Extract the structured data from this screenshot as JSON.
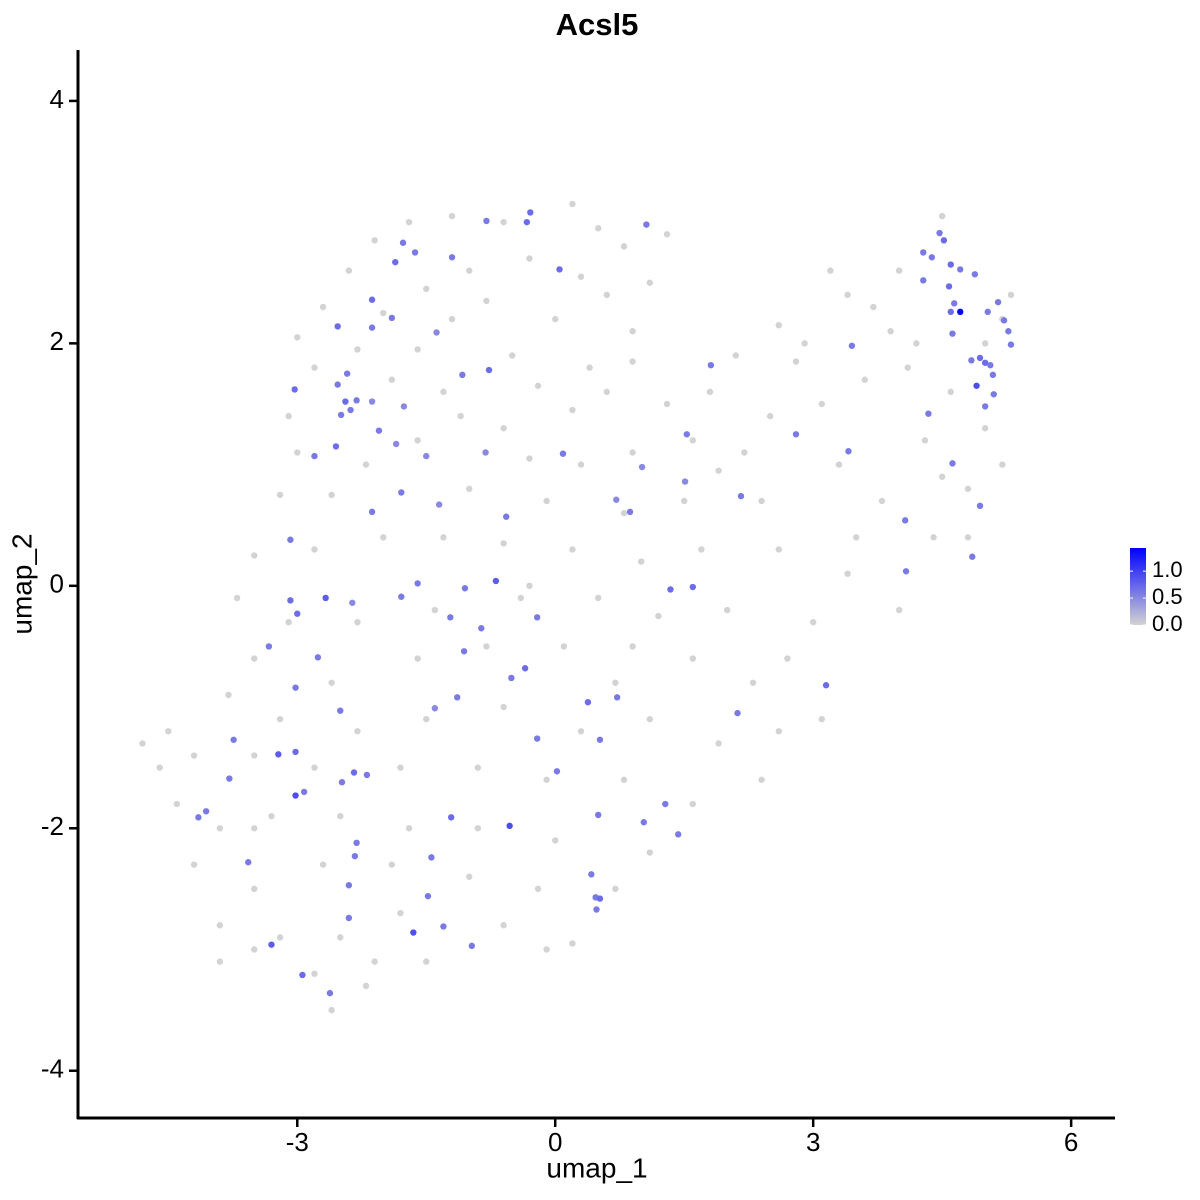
{
  "chart_data": {
    "type": "scatter",
    "title": "Acsl5",
    "x_label": "umap_1",
    "y_label": "umap_2",
    "xlim": [
      -5.55,
      6.51
    ],
    "ylim": [
      -4.39,
      4.42
    ],
    "xticks": [
      -3,
      0,
      3,
      6
    ],
    "yticks": [
      -4,
      -2,
      0,
      2,
      4
    ],
    "colors": [
      "#d3d3d3",
      "#0000ff"
    ],
    "clim": [
      0,
      1.43
    ],
    "cticks": [
      {
        "value": 0,
        "label": "0.0"
      },
      {
        "value": 0.5,
        "label": "0.5"
      },
      {
        "value": 1,
        "label": "1.0"
      }
    ],
    "points": [
      [
        -1.7,
        3.0,
        0
      ],
      [
        -1.2,
        3.05,
        0
      ],
      [
        -0.6,
        3.0,
        0
      ],
      [
        0.2,
        3.15,
        0
      ],
      [
        0.5,
        2.95,
        0
      ],
      [
        -2.1,
        2.85,
        0
      ],
      [
        0.8,
        2.8,
        0
      ],
      [
        1.3,
        2.9,
        0
      ],
      [
        -0.3,
        2.7,
        0
      ],
      [
        -1.0,
        2.6,
        0
      ],
      [
        0.3,
        2.55,
        0
      ],
      [
        -2.4,
        2.6,
        0
      ],
      [
        -1.5,
        2.45,
        0
      ],
      [
        -0.8,
        2.35,
        0
      ],
      [
        0.6,
        2.4,
        0
      ],
      [
        1.1,
        2.5,
        0
      ],
      [
        -2.7,
        2.3,
        0
      ],
      [
        -2.0,
        2.25,
        0
      ],
      [
        -1.2,
        2.2,
        0
      ],
      [
        0.0,
        2.2,
        0
      ],
      [
        0.9,
        2.1,
        0
      ],
      [
        -3.0,
        2.05,
        0
      ],
      [
        -2.3,
        1.95,
        0
      ],
      [
        -1.6,
        1.95,
        0
      ],
      [
        -0.5,
        1.9,
        0
      ],
      [
        0.4,
        1.8,
        0
      ],
      [
        0.9,
        1.85,
        0
      ],
      [
        -2.8,
        1.8,
        0
      ],
      [
        -1.9,
        1.7,
        0
      ],
      [
        -1.3,
        1.6,
        0
      ],
      [
        -0.2,
        1.65,
        0
      ],
      [
        -3.1,
        1.4,
        0
      ],
      [
        -1.1,
        1.4,
        0
      ],
      [
        -0.6,
        1.3,
        0
      ],
      [
        0.2,
        1.45,
        0
      ],
      [
        0.6,
        1.6,
        0
      ],
      [
        1.3,
        1.5,
        0
      ],
      [
        1.8,
        1.6,
        0
      ],
      [
        2.1,
        1.9,
        0
      ],
      [
        2.6,
        2.15,
        0
      ],
      [
        2.8,
        1.85,
        0
      ],
      [
        3.4,
        2.4,
        0
      ],
      [
        3.2,
        2.6,
        0
      ],
      [
        3.7,
        2.3,
        0
      ],
      [
        3.9,
        2.1,
        0
      ],
      [
        4.1,
        1.8,
        0
      ],
      [
        3.6,
        1.7,
        0
      ],
      [
        3.1,
        1.5,
        0
      ],
      [
        2.5,
        1.4,
        0
      ],
      [
        2.2,
        1.1,
        0
      ],
      [
        1.6,
        1.2,
        0
      ],
      [
        0.9,
        1.1,
        0
      ],
      [
        0.3,
        1.0,
        0
      ],
      [
        -0.3,
        1.05,
        0
      ],
      [
        -1.6,
        1.2,
        0
      ],
      [
        -2.2,
        1.0,
        0
      ],
      [
        -3.0,
        1.1,
        0
      ],
      [
        -3.2,
        0.75,
        0
      ],
      [
        -2.6,
        0.75,
        0
      ],
      [
        -1.0,
        0.8,
        0
      ],
      [
        -0.1,
        0.7,
        0
      ],
      [
        0.8,
        0.6,
        0
      ],
      [
        1.5,
        0.7,
        0
      ],
      [
        2.4,
        0.7,
        0
      ],
      [
        3.3,
        1.0,
        0
      ],
      [
        3.8,
        0.7,
        0
      ],
      [
        4.3,
        1.2,
        0
      ],
      [
        4.5,
        0.9,
        0
      ],
      [
        4.8,
        0.8,
        0
      ],
      [
        5.2,
        1.0,
        0
      ],
      [
        5.0,
        1.3,
        0
      ],
      [
        4.6,
        1.6,
        0
      ],
      [
        4.2,
        2.0,
        0
      ],
      [
        3.5,
        0.4,
        0
      ],
      [
        4.4,
        0.4,
        0
      ],
      [
        4.8,
        0.4,
        0
      ],
      [
        3.4,
        0.1,
        0
      ],
      [
        3.0,
        -0.3,
        0
      ],
      [
        4.0,
        -0.2,
        0
      ],
      [
        2.6,
        0.3,
        0
      ],
      [
        1.7,
        0.3,
        0
      ],
      [
        1.0,
        0.2,
        0
      ],
      [
        0.2,
        0.3,
        0
      ],
      [
        -0.6,
        0.35,
        0
      ],
      [
        -1.3,
        0.4,
        0
      ],
      [
        -2.0,
        0.4,
        0
      ],
      [
        -2.8,
        0.3,
        0
      ],
      [
        -3.5,
        0.25,
        0
      ],
      [
        -3.7,
        -0.1,
        0
      ],
      [
        -3.1,
        -0.3,
        0
      ],
      [
        -2.3,
        -0.3,
        0
      ],
      [
        -1.4,
        -0.2,
        0
      ],
      [
        -0.4,
        -0.1,
        0
      ],
      [
        0.5,
        -0.1,
        0
      ],
      [
        1.2,
        -0.25,
        0
      ],
      [
        2.0,
        -0.2,
        0
      ],
      [
        2.7,
        -0.6,
        0
      ],
      [
        2.3,
        -0.8,
        0
      ],
      [
        1.6,
        -0.6,
        0
      ],
      [
        0.9,
        -0.5,
        0
      ],
      [
        0.1,
        -0.5,
        0
      ],
      [
        -0.8,
        -0.5,
        0
      ],
      [
        -1.6,
        -0.6,
        0
      ],
      [
        -2.6,
        -0.8,
        0
      ],
      [
        -3.5,
        -0.6,
        0
      ],
      [
        -3.8,
        -0.9,
        0
      ],
      [
        -3.2,
        -1.1,
        0
      ],
      [
        -2.3,
        -1.2,
        0
      ],
      [
        -1.5,
        -1.1,
        0
      ],
      [
        -0.6,
        -1.0,
        0
      ],
      [
        0.3,
        -1.2,
        0
      ],
      [
        1.1,
        -1.1,
        0
      ],
      [
        1.9,
        -1.3,
        0
      ],
      [
        2.6,
        -1.2,
        0
      ],
      [
        3.1,
        -1.1,
        0
      ],
      [
        2.4,
        -1.6,
        0
      ],
      [
        1.6,
        -1.8,
        0
      ],
      [
        0.8,
        -1.6,
        0
      ],
      [
        -0.1,
        -1.6,
        0
      ],
      [
        -0.9,
        -1.5,
        0
      ],
      [
        -1.8,
        -1.5,
        0
      ],
      [
        -2.8,
        -1.5,
        0
      ],
      [
        -3.5,
        -1.4,
        0
      ],
      [
        -4.2,
        -1.4,
        0
      ],
      [
        -4.5,
        -1.2,
        0
      ],
      [
        -4.8,
        -1.3,
        0
      ],
      [
        -4.6,
        -1.5,
        0
      ],
      [
        -4.4,
        -1.8,
        0
      ],
      [
        -3.9,
        -2.0,
        0
      ],
      [
        -3.3,
        -1.9,
        0
      ],
      [
        -2.5,
        -1.9,
        0
      ],
      [
        -1.7,
        -2.0,
        0
      ],
      [
        -0.9,
        -2.0,
        0
      ],
      [
        0.0,
        -2.1,
        0
      ],
      [
        1.1,
        -2.2,
        0
      ],
      [
        0.7,
        -2.5,
        0
      ],
      [
        -0.2,
        -2.5,
        0
      ],
      [
        -1.0,
        -2.4,
        0
      ],
      [
        -1.9,
        -2.3,
        0
      ],
      [
        -2.7,
        -2.3,
        0
      ],
      [
        -3.5,
        -2.5,
        0
      ],
      [
        -4.2,
        -2.3,
        0
      ],
      [
        -3.9,
        -2.8,
        0
      ],
      [
        -3.2,
        -2.9,
        0
      ],
      [
        -2.5,
        -2.9,
        0
      ],
      [
        -1.8,
        -2.7,
        0
      ],
      [
        -0.6,
        -2.8,
        0
      ],
      [
        0.2,
        -2.95,
        0
      ],
      [
        -0.1,
        -3.0,
        0
      ],
      [
        -1.5,
        -3.1,
        0
      ],
      [
        -2.1,
        -3.1,
        0
      ],
      [
        -2.8,
        -3.2,
        0
      ],
      [
        -3.5,
        -3.0,
        0
      ],
      [
        -2.6,
        -3.5,
        0
      ],
      [
        -2.2,
        -3.3,
        0
      ],
      [
        -3.9,
        -3.1,
        0
      ],
      [
        1.9,
        0.95,
        0
      ],
      [
        2.9,
        2.0,
        0
      ],
      [
        4.0,
        2.6,
        0
      ],
      [
        4.5,
        3.05,
        0
      ],
      [
        5.3,
        2.4,
        0
      ],
      [
        5.2,
        2.2,
        0
      ],
      [
        5.0,
        2.0,
        0
      ],
      [
        -3.5,
        -2.0,
        0
      ],
      [
        -0.3,
        0.0,
        0
      ],
      [
        0.7,
        -0.8,
        0
      ],
      [
        -0.29,
        3.08,
        0.7
      ],
      [
        -0.33,
        3.0,
        0.7
      ],
      [
        -0.8,
        3.01,
        0.6
      ],
      [
        1.06,
        2.98,
        0.6
      ],
      [
        0.05,
        2.61,
        0.7
      ],
      [
        -1.77,
        2.83,
        0.6
      ],
      [
        -1.63,
        2.75,
        0.6
      ],
      [
        -1.86,
        2.67,
        0.7
      ],
      [
        -1.2,
        2.71,
        0.6
      ],
      [
        -2.13,
        2.36,
        0.7
      ],
      [
        -2.53,
        2.14,
        0.7
      ],
      [
        -2.13,
        2.13,
        0.6
      ],
      [
        -1.9,
        2.21,
        0.6
      ],
      [
        -1.38,
        2.09,
        0.5
      ],
      [
        -3.03,
        1.62,
        0.7
      ],
      [
        -2.53,
        1.66,
        0.6
      ],
      [
        -2.42,
        1.75,
        0.6
      ],
      [
        -1.08,
        1.74,
        0.6
      ],
      [
        -0.77,
        1.78,
        0.7
      ],
      [
        -2.44,
        1.52,
        0.7
      ],
      [
        -2.31,
        1.53,
        0.6
      ],
      [
        -2.13,
        1.52,
        0.5
      ],
      [
        -2.38,
        1.45,
        0.6
      ],
      [
        -1.76,
        1.48,
        0.5
      ],
      [
        -2.49,
        1.41,
        0.6
      ],
      [
        -2.05,
        1.28,
        0.6
      ],
      [
        -2.55,
        1.15,
        0.7
      ],
      [
        -2.8,
        1.07,
        0.6
      ],
      [
        -1.85,
        1.17,
        0.5
      ],
      [
        -1.5,
        1.07,
        0.5
      ],
      [
        -0.81,
        1.1,
        0.5
      ],
      [
        0.09,
        1.09,
        0.6
      ],
      [
        1.01,
        0.98,
        0.5
      ],
      [
        1.53,
        1.25,
        0.6
      ],
      [
        1.81,
        1.82,
        0.6
      ],
      [
        2.8,
        1.25,
        0.6
      ],
      [
        3.41,
        1.11,
        0.6
      ],
      [
        3.45,
        1.98,
        0.6
      ],
      [
        1.51,
        0.86,
        0.5
      ],
      [
        2.16,
        0.74,
        0.6
      ],
      [
        -1.79,
        0.77,
        0.6
      ],
      [
        -2.13,
        0.61,
        0.6
      ],
      [
        -1.35,
        0.67,
        0.5
      ],
      [
        -0.57,
        0.57,
        0.6
      ],
      [
        0.87,
        0.61,
        0.6
      ],
      [
        0.71,
        0.71,
        0.5
      ],
      [
        -3.08,
        0.38,
        0.6
      ],
      [
        -0.69,
        0.04,
        0.8
      ],
      [
        -3.08,
        -0.12,
        0.7
      ],
      [
        -3.0,
        -0.23,
        0.7
      ],
      [
        -2.67,
        -0.1,
        0.8
      ],
      [
        -2.36,
        -0.14,
        0.5
      ],
      [
        -1.6,
        0.02,
        0.6
      ],
      [
        -1.79,
        -0.09,
        0.6
      ],
      [
        -1.05,
        -0.02,
        0.6
      ],
      [
        1.6,
        -0.01,
        0.7
      ],
      [
        1.34,
        -0.03,
        0.7
      ],
      [
        -0.21,
        -0.26,
        0.6
      ],
      [
        -0.86,
        -0.35,
        0.6
      ],
      [
        -1.22,
        -0.26,
        0.6
      ],
      [
        -1.06,
        -0.54,
        0.6
      ],
      [
        -3.33,
        -0.5,
        0.6
      ],
      [
        -2.76,
        -0.59,
        0.6
      ],
      [
        -3.02,
        -0.84,
        0.6
      ],
      [
        -0.35,
        -0.68,
        0.7
      ],
      [
        -0.51,
        -0.76,
        0.6
      ],
      [
        -1.14,
        -0.92,
        0.6
      ],
      [
        -1.4,
        -1.01,
        0.5
      ],
      [
        -2.5,
        -1.03,
        0.6
      ],
      [
        0.38,
        -0.96,
        0.7
      ],
      [
        0.72,
        -0.92,
        0.6
      ],
      [
        2.12,
        -1.05,
        0.6
      ],
      [
        3.15,
        -0.82,
        0.7
      ],
      [
        -0.21,
        -1.26,
        0.6
      ],
      [
        0.52,
        -1.27,
        0.6
      ],
      [
        -3.74,
        -1.27,
        0.6
      ],
      [
        -3.02,
        -1.37,
        0.7
      ],
      [
        -3.22,
        -1.39,
        0.8
      ],
      [
        0.02,
        -1.53,
        0.6
      ],
      [
        -2.19,
        -1.56,
        0.6
      ],
      [
        -2.34,
        -1.54,
        0.7
      ],
      [
        -2.48,
        -1.62,
        0.6
      ],
      [
        -3.79,
        -1.59,
        0.6
      ],
      [
        -3.02,
        -1.73,
        0.9
      ],
      [
        -2.92,
        -1.7,
        0.6
      ],
      [
        -4.06,
        -1.86,
        0.6
      ],
      [
        -4.15,
        -1.91,
        0.6
      ],
      [
        -1.21,
        -1.91,
        0.7
      ],
      [
        -0.53,
        -1.98,
        0.9
      ],
      [
        0.5,
        -1.89,
        0.6
      ],
      [
        1.03,
        -1.95,
        0.6
      ],
      [
        1.28,
        -1.8,
        0.6
      ],
      [
        1.43,
        -2.05,
        0.6
      ],
      [
        -2.31,
        -2.12,
        0.6
      ],
      [
        -1.44,
        -2.24,
        0.6
      ],
      [
        -3.57,
        -2.28,
        0.6
      ],
      [
        -2.33,
        -2.23,
        0.6
      ],
      [
        -2.4,
        -2.47,
        0.6
      ],
      [
        0.42,
        -2.38,
        0.6
      ],
      [
        0.47,
        -2.57,
        0.6
      ],
      [
        0.52,
        -2.58,
        0.7
      ],
      [
        0.48,
        -2.67,
        0.6
      ],
      [
        -1.48,
        -2.56,
        0.6
      ],
      [
        -2.4,
        -2.74,
        0.6
      ],
      [
        -1.3,
        -2.81,
        0.6
      ],
      [
        -1.65,
        -2.86,
        0.9
      ],
      [
        -0.97,
        -2.97,
        0.6
      ],
      [
        -3.3,
        -2.96,
        0.8
      ],
      [
        -2.94,
        -3.21,
        0.7
      ],
      [
        -2.62,
        -3.36,
        0.6
      ],
      [
        4.28,
        2.75,
        0.6
      ],
      [
        4.47,
        2.91,
        0.6
      ],
      [
        4.52,
        2.85,
        0.7
      ],
      [
        4.38,
        2.71,
        0.6
      ],
      [
        4.6,
        2.65,
        0.7
      ],
      [
        4.71,
        2.61,
        0.6
      ],
      [
        4.88,
        2.57,
        0.6
      ],
      [
        4.58,
        2.47,
        0.7
      ],
      [
        4.64,
        2.33,
        0.6
      ],
      [
        4.6,
        2.26,
        0.7
      ],
      [
        5.15,
        2.34,
        0.6
      ],
      [
        5.03,
        2.26,
        0.6
      ],
      [
        5.22,
        2.19,
        0.6
      ],
      [
        5.27,
        2.1,
        0.6
      ],
      [
        4.62,
        2.08,
        0.6
      ],
      [
        5.3,
        1.99,
        0.6
      ],
      [
        4.84,
        1.86,
        0.6
      ],
      [
        4.94,
        1.88,
        0.7
      ],
      [
        5.06,
        1.82,
        0.6
      ],
      [
        5.0,
        1.84,
        0.7
      ],
      [
        5.09,
        1.74,
        0.6
      ],
      [
        4.9,
        1.65,
        0.9
      ],
      [
        5.1,
        1.58,
        0.6
      ],
      [
        5.0,
        1.48,
        0.6
      ],
      [
        4.34,
        1.42,
        0.6
      ],
      [
        4.62,
        1.01,
        0.6
      ],
      [
        4.94,
        0.66,
        0.6
      ],
      [
        4.07,
        0.54,
        0.6
      ],
      [
        4.85,
        0.24,
        0.6
      ],
      [
        4.08,
        0.12,
        0.6
      ],
      [
        4.28,
        2.52,
        0.6
      ],
      [
        4.71,
        2.26,
        1.43
      ]
    ]
  }
}
